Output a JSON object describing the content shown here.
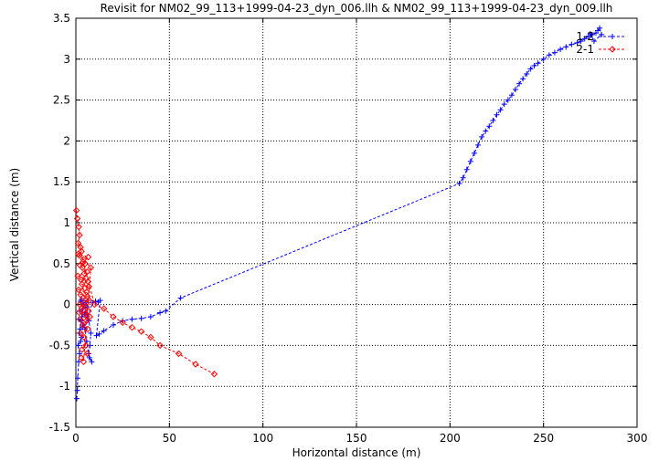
{
  "chart_data": {
    "type": "scatter",
    "title": "Revisit for NM02_99_113+1999-04-23_dyn_006.llh & NM02_99_113+1999-04-23_dyn_009.llh",
    "xlabel": "Horizontal distance (m)",
    "ylabel": "Vertical distance (m)",
    "xlim": [
      0,
      300
    ],
    "ylim": [
      -1.5,
      3.5
    ],
    "xticks": [
      "0",
      "50",
      "100",
      "150",
      "200",
      "250",
      "300"
    ],
    "yticks": [
      "-1.5",
      "-1",
      "-0.5",
      "0",
      "0.5",
      "1",
      "1.5",
      "2",
      "2.5",
      "3",
      "3.5"
    ],
    "grid": true,
    "legend_position": "top-right",
    "series": [
      {
        "name": "1-2",
        "color": "#0000ff",
        "marker": "plus",
        "line": "dashed",
        "points": [
          [
            0.5,
            -1.15
          ],
          [
            0.8,
            -1.05
          ],
          [
            1.0,
            -0.9
          ],
          [
            1.5,
            -0.7
          ],
          [
            2.0,
            -0.6
          ],
          [
            1.2,
            -0.5
          ],
          [
            2.5,
            -0.45
          ],
          [
            3.0,
            -0.4
          ],
          [
            1.8,
            -0.35
          ],
          [
            2.2,
            -0.3
          ],
          [
            3.5,
            -0.28
          ],
          [
            4.0,
            -0.25
          ],
          [
            2.8,
            -0.2
          ],
          [
            1.5,
            -0.18
          ],
          [
            3.2,
            -0.15
          ],
          [
            4.5,
            -0.12
          ],
          [
            5.0,
            -0.1
          ],
          [
            2.0,
            -0.08
          ],
          [
            3.8,
            -0.05
          ],
          [
            6.0,
            -0.03
          ],
          [
            4.2,
            0.0
          ],
          [
            5.5,
            0.02
          ],
          [
            2.5,
            0.04
          ],
          [
            6.5,
            0.05
          ],
          [
            3.0,
            0.06
          ],
          [
            7.0,
            -0.2
          ],
          [
            8.0,
            -0.35
          ],
          [
            7.5,
            -0.5
          ],
          [
            6.8,
            -0.6
          ],
          [
            8.5,
            -0.7
          ],
          [
            7.2,
            -0.65
          ],
          [
            5.8,
            -0.45
          ],
          [
            4.8,
            -0.3
          ],
          [
            6.2,
            -0.15
          ],
          [
            9.0,
            0.02
          ],
          [
            10.5,
            0.04
          ],
          [
            12.0,
            0.03
          ],
          [
            13.0,
            0.05
          ],
          [
            11.0,
            -0.38
          ],
          [
            12.5,
            -0.36
          ],
          [
            15.0,
            -0.32
          ],
          [
            20.0,
            -0.25
          ],
          [
            25.0,
            -0.2
          ],
          [
            30.0,
            -0.18
          ],
          [
            35.0,
            -0.17
          ],
          [
            40.0,
            -0.15
          ],
          [
            45.0,
            -0.1
          ],
          [
            48.0,
            -0.08
          ],
          [
            56.0,
            0.08
          ],
          [
            205.0,
            1.48
          ],
          [
            207.0,
            1.55
          ],
          [
            209.0,
            1.65
          ],
          [
            211.0,
            1.75
          ],
          [
            213.0,
            1.85
          ],
          [
            215.0,
            1.95
          ],
          [
            217.0,
            2.05
          ],
          [
            219.0,
            2.12
          ],
          [
            221.0,
            2.18
          ],
          [
            223.0,
            2.25
          ],
          [
            225.0,
            2.32
          ],
          [
            227.0,
            2.38
          ],
          [
            229.0,
            2.45
          ],
          [
            231.0,
            2.5
          ],
          [
            233.0,
            2.56
          ],
          [
            235.0,
            2.63
          ],
          [
            237.0,
            2.7
          ],
          [
            239.0,
            2.76
          ],
          [
            241.0,
            2.82
          ],
          [
            243.0,
            2.88
          ],
          [
            245.0,
            2.92
          ],
          [
            247.0,
            2.95
          ],
          [
            250.0,
            3.0
          ],
          [
            253.0,
            3.05
          ],
          [
            256.0,
            3.08
          ],
          [
            259.0,
            3.12
          ],
          [
            262.0,
            3.15
          ],
          [
            265.0,
            3.18
          ],
          [
            268.0,
            3.2
          ],
          [
            270.0,
            3.22
          ],
          [
            272.0,
            3.25
          ],
          [
            274.0,
            3.28
          ],
          [
            276.0,
            3.3
          ],
          [
            278.0,
            3.32
          ],
          [
            279.0,
            3.35
          ],
          [
            280.0,
            3.38
          ],
          [
            281.0,
            3.3
          ],
          [
            277.0,
            3.22
          ],
          [
            275.0,
            3.31
          ]
        ]
      },
      {
        "name": "2-1",
        "color": "#ff0000",
        "marker": "diamond",
        "line": "dashed",
        "points": [
          [
            0.3,
            1.15
          ],
          [
            0.8,
            1.05
          ],
          [
            1.5,
            0.95
          ],
          [
            2.0,
            0.85
          ],
          [
            1.2,
            0.75
          ],
          [
            2.5,
            0.7
          ],
          [
            3.0,
            0.65
          ],
          [
            1.8,
            0.6
          ],
          [
            4.0,
            0.55
          ],
          [
            5.0,
            0.5
          ],
          [
            2.2,
            0.48
          ],
          [
            3.5,
            0.45
          ],
          [
            6.0,
            0.4
          ],
          [
            4.5,
            0.38
          ],
          [
            1.0,
            0.35
          ],
          [
            5.5,
            0.32
          ],
          [
            2.8,
            0.3
          ],
          [
            6.5,
            0.28
          ],
          [
            3.2,
            0.25
          ],
          [
            7.0,
            0.22
          ],
          [
            4.8,
            0.2
          ],
          [
            1.5,
            0.18
          ],
          [
            5.8,
            0.15
          ],
          [
            2.5,
            0.12
          ],
          [
            6.2,
            0.1
          ],
          [
            3.8,
            0.08
          ],
          [
            7.2,
            0.05
          ],
          [
            4.2,
            0.02
          ],
          [
            2.0,
            0.0
          ],
          [
            5.2,
            -0.02
          ],
          [
            3.0,
            -0.05
          ],
          [
            6.8,
            -0.08
          ],
          [
            1.8,
            -0.1
          ],
          [
            4.6,
            -0.12
          ],
          [
            7.5,
            -0.15
          ],
          [
            2.3,
            -0.18
          ],
          [
            5.6,
            -0.2
          ],
          [
            3.6,
            -0.25
          ],
          [
            6.4,
            -0.3
          ],
          [
            2.6,
            -0.35
          ],
          [
            4.4,
            -0.4
          ],
          [
            5.3,
            -0.5
          ],
          [
            3.3,
            -0.55
          ],
          [
            6.1,
            -0.6
          ],
          [
            2.9,
            -0.65
          ],
          [
            4.1,
            -0.7
          ],
          [
            8.0,
            0.45
          ],
          [
            1.3,
            0.62
          ],
          [
            6.6,
            0.58
          ],
          [
            3.9,
            0.52
          ],
          [
            10.0,
            0.0
          ],
          [
            15.0,
            -0.05
          ],
          [
            20.0,
            -0.15
          ],
          [
            25.0,
            -0.22
          ],
          [
            30.0,
            -0.28
          ],
          [
            35.0,
            -0.33
          ],
          [
            40.0,
            -0.4
          ],
          [
            45.0,
            -0.5
          ],
          [
            55.0,
            -0.6
          ],
          [
            64.0,
            -0.73
          ],
          [
            74.0,
            -0.85
          ]
        ]
      }
    ]
  }
}
